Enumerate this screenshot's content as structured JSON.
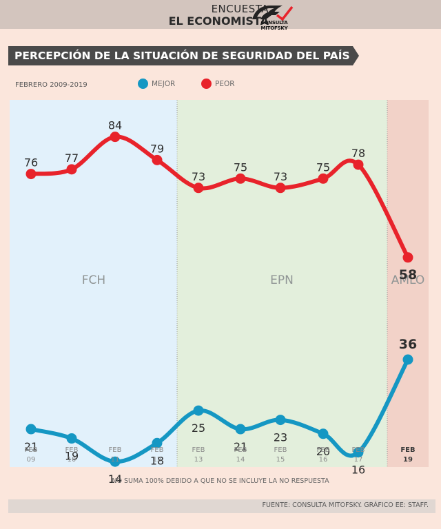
{
  "header": {
    "line1": "ENCUESTA",
    "line2": "EL ECONOMISTA",
    "logo_text": "CONSULTA MITOFSKY"
  },
  "chart_data": {
    "type": "line",
    "title": "PERCEPCIÓN DE LA SITUACIÓN DE SEGURIDAD DEL PAÍS",
    "subtitle": "FEBRERO 2009-2019",
    "categories": [
      [
        "FEB",
        "09"
      ],
      [
        "FEB",
        "10"
      ],
      [
        "FEB",
        "11"
      ],
      [
        "FEB",
        "12"
      ],
      [
        "FEB",
        "13"
      ],
      [
        "FEB",
        "14"
      ],
      [
        "FEB",
        "15"
      ],
      [
        "FEB",
        "16"
      ],
      [
        "FEB",
        "17"
      ],
      [
        "FEB",
        "19"
      ]
    ],
    "series": [
      {
        "name": "MEJOR",
        "color": "#1597c3",
        "values": [
          21,
          19,
          14,
          18,
          25,
          21,
          23,
          20,
          16,
          36
        ]
      },
      {
        "name": "PEOR",
        "color": "#e8232b",
        "values": [
          76,
          77,
          84,
          79,
          73,
          75,
          73,
          75,
          78,
          58
        ]
      }
    ],
    "periods": [
      {
        "label": "FCH",
        "start": 0,
        "end": 3,
        "color": "#e2f1fb"
      },
      {
        "label": "EPN",
        "start": 4,
        "end": 8,
        "color": "#e3efdc"
      },
      {
        "label": "AMLO",
        "start": 9,
        "end": 9,
        "color": "#f2d2c8"
      }
    ],
    "legend_position": "top"
  },
  "footnote": "NO SUMA 100% DEBIDO A QUE NO SE INCLUYE LA NO RESPUESTA",
  "source": "FUENTE: CONSULTA MITOFSKY.  GRÁFICO EE: STAFF."
}
